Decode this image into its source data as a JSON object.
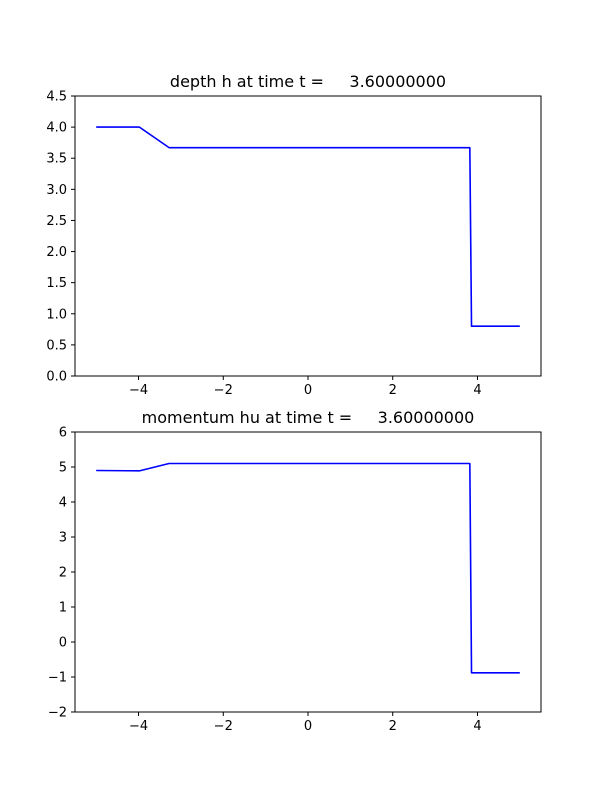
{
  "chart_data": [
    {
      "type": "line",
      "title": "depth h at time t =     3.60000000",
      "xlabel": "",
      "ylabel": "",
      "xlim": [
        -5.5,
        5.5
      ],
      "ylim": [
        0.0,
        4.5
      ],
      "xticks": [
        -4,
        -2,
        0,
        2,
        4
      ],
      "xtick_labels": [
        "−4",
        "−2",
        "0",
        "2",
        "4"
      ],
      "yticks": [
        0.0,
        0.5,
        1.0,
        1.5,
        2.0,
        2.5,
        3.0,
        3.5,
        4.0,
        4.5
      ],
      "ytick_labels": [
        "0.0",
        "0.5",
        "1.0",
        "1.5",
        "2.0",
        "2.5",
        "3.0",
        "3.5",
        "4.0",
        "4.5"
      ],
      "grid": false,
      "color": "#0000ff",
      "series": [
        {
          "x": [
            -5.0,
            -3.98,
            -3.28,
            3.82,
            3.86,
            5.0
          ],
          "y": [
            4.0,
            4.0,
            3.67,
            3.67,
            0.8,
            0.8
          ]
        }
      ]
    },
    {
      "type": "line",
      "title": "momentum hu at time t =     3.60000000",
      "xlabel": "",
      "ylabel": "",
      "xlim": [
        -5.5,
        5.5
      ],
      "ylim": [
        -2,
        6
      ],
      "xticks": [
        -4,
        -2,
        0,
        2,
        4
      ],
      "xtick_labels": [
        "−4",
        "−2",
        "0",
        "2",
        "4"
      ],
      "yticks": [
        -2,
        -1,
        0,
        1,
        2,
        3,
        4,
        5,
        6
      ],
      "ytick_labels": [
        "−2",
        "−1",
        "0",
        "1",
        "2",
        "3",
        "4",
        "5",
        "6"
      ],
      "grid": false,
      "color": "#0000ff",
      "series": [
        {
          "x": [
            -5.0,
            -3.98,
            -3.28,
            3.82,
            3.86,
            5.0
          ],
          "y": [
            4.9,
            4.89,
            5.1,
            5.1,
            -0.88,
            -0.88
          ]
        }
      ]
    }
  ]
}
